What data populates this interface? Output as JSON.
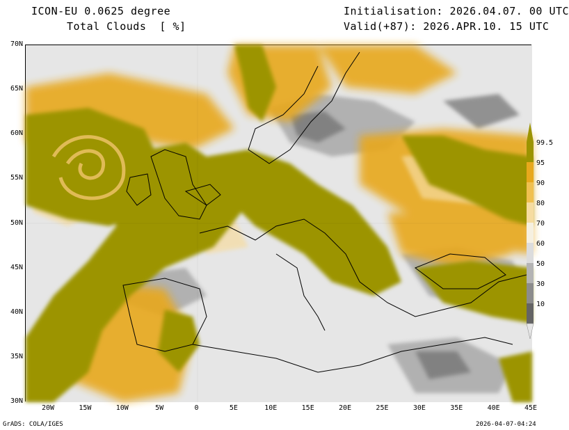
{
  "header": {
    "model": "ICON-EU 0.0625 degree",
    "variable": "Total Clouds  [ %]",
    "init": "Initialisation: 2026.04.07. 00 UTC",
    "valid": "Valid(+87): 2026.APR.10. 15 UTC"
  },
  "axes": {
    "lat_labels": [
      "70N",
      "65N",
      "60N",
      "55N",
      "50N",
      "45N",
      "40N",
      "35N",
      "30N"
    ],
    "lon_labels": [
      "20W",
      "15W",
      "10W",
      "5W",
      "0",
      "5E",
      "10E",
      "15E",
      "20E",
      "25E",
      "30E",
      "35E",
      "40E",
      "45E"
    ]
  },
  "legend": {
    "labels": [
      "99.5",
      "95",
      "90",
      "80",
      "70",
      "60",
      "50",
      "30",
      "10"
    ],
    "colors": [
      "#9c9400",
      "#e8a81c",
      "#f0c050",
      "#f6dca0",
      "#f6f0e0",
      "#dcdcdc",
      "#b4b4b4",
      "#8c8c8c",
      "#646464"
    ]
  },
  "colors": {
    "full_cloud": "#9c9400",
    "high_cloud": "#e8a81c",
    "clear": "#e6e6e6"
  },
  "footer": {
    "left": "GrADS: COLA/IGES",
    "right": "2026-04-07-04:24"
  }
}
